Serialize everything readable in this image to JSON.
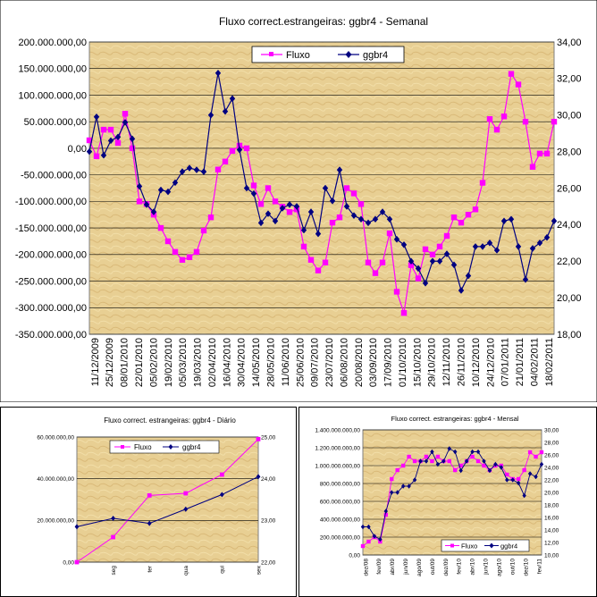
{
  "chart_data": [
    {
      "id": "weekly",
      "type": "line",
      "title": "Fluxo correct.estrangeiras: ggbr4 - Semanal",
      "yleft": {
        "min": -350000000,
        "max": 200000000,
        "step": 50000000,
        "ticks": [
          "200.000.000,00",
          "150.000.000,00",
          "100.000.000,00",
          "50.000.000,00",
          "0,00",
          "-50.000.000,00",
          "-100.000.000,00",
          "-150.000.000,00",
          "-200.000.000,00",
          "-250.000.000,00",
          "-300.000.000,00",
          "-350.000.000,00"
        ]
      },
      "yright": {
        "min": 18,
        "max": 34,
        "step": 2,
        "ticks": [
          "34,00",
          "32,00",
          "30,00",
          "28,00",
          "26,00",
          "24,00",
          "22,00",
          "20,00",
          "18,00"
        ]
      },
      "x_labels": [
        "11/12/2009",
        "25/12/2009",
        "08/01/2010",
        "22/01/2010",
        "05/02/2010",
        "19/02/2010",
        "05/03/2010",
        "19/03/2010",
        "02/04/2010",
        "16/04/2010",
        "30/04/2010",
        "14/05/2010",
        "28/05/2010",
        "11/06/2010",
        "25/06/2010",
        "09/07/2010",
        "23/07/2010",
        "06/08/2010",
        "20/08/2010",
        "03/09/2010",
        "17/09/2010",
        "01/10/2010",
        "15/10/2010",
        "29/10/2010",
        "12/11/2010",
        "26/11/2010",
        "10/12/2010",
        "24/12/2010",
        "07/01/2011",
        "21/01/2011",
        "04/02/2011",
        "18/02/2011"
      ],
      "legend": [
        "Fluxo",
        "ggbr4"
      ],
      "series": [
        {
          "name": "Fluxo",
          "axis": "left",
          "color": "#ff00ff",
          "marker": "square",
          "values": [
            15,
            -15,
            35,
            35,
            10,
            65,
            0,
            -100,
            -105,
            -125,
            -150,
            -175,
            -195,
            -210,
            -205,
            -195,
            -155,
            -130,
            -40,
            -25,
            -5,
            5,
            0,
            -70,
            -105,
            -75,
            -100,
            -110,
            -120,
            -115,
            -185,
            -210,
            -230,
            -215,
            -140,
            -130,
            -75,
            -85,
            -105,
            -215,
            -235,
            -215,
            -160,
            -270,
            -310,
            -220,
            -245,
            -190,
            -200,
            -185,
            -165,
            -130,
            -140,
            -125,
            -115,
            -65,
            55,
            35,
            60,
            140,
            120,
            50,
            -35,
            -10,
            -10,
            50
          ]
        },
        {
          "name": "ggbr4",
          "axis": "right",
          "color": "#000080",
          "marker": "diamond",
          "values": [
            28.0,
            29.9,
            27.8,
            28.6,
            28.8,
            29.6,
            28.7,
            26.1,
            25.1,
            24.7,
            25.9,
            25.8,
            26.3,
            26.9,
            27.1,
            27.0,
            26.9,
            30.0,
            32.3,
            30.2,
            30.9,
            28.1,
            26.0,
            25.7,
            24.1,
            24.6,
            24.2,
            24.9,
            25.1,
            25.0,
            23.7,
            24.7,
            23.5,
            26.0,
            25.3,
            27.0,
            25.0,
            24.5,
            24.3,
            24.1,
            24.3,
            24.7,
            24.3,
            23.2,
            22.9,
            22.0,
            21.6,
            20.8,
            22.0,
            22.0,
            22.4,
            21.8,
            20.4,
            21.2,
            22.8,
            22.8,
            23.0,
            22.6,
            24.2,
            24.3,
            22.8,
            21.0,
            22.7,
            23.0,
            23.3,
            24.2
          ]
        }
      ]
    },
    {
      "id": "daily",
      "type": "line",
      "title": "Fluxo correct. estrangeiras: ggbr4 - Diário",
      "yleft": {
        "min": 0,
        "max": 60000000,
        "step": 20000000,
        "ticks": [
          "60.000.000,00",
          "40.000.000,00",
          "20.000.000,00",
          "0,00"
        ]
      },
      "yright": {
        "min": 22,
        "max": 25,
        "step": 1,
        "ticks": [
          "25,00",
          "24,00",
          "23,00",
          "22,00"
        ]
      },
      "x_labels": [
        "",
        "seg",
        "ter",
        "qua",
        "qui",
        "sex"
      ],
      "legend": [
        "Fluxo",
        "ggbr4"
      ],
      "series": [
        {
          "name": "Fluxo",
          "axis": "left",
          "color": "#ff00ff",
          "marker": "square",
          "values": [
            0,
            12,
            32,
            33,
            42,
            59
          ]
        },
        {
          "name": "ggbr4",
          "axis": "right",
          "color": "#000080",
          "marker": "diamond",
          "values": [
            22.85,
            23.05,
            22.93,
            23.27,
            23.62,
            24.05
          ]
        }
      ]
    },
    {
      "id": "monthly",
      "type": "line",
      "title": "Fluxo correct. estrangeiras: ggbr4 - Mensal",
      "yleft": {
        "min": 0,
        "max": 1400000000,
        "step": 200000000,
        "ticks": [
          "1.400.000.000,00",
          "1.200.000.000,00",
          "1.000.000.000,00",
          "800.000.000,00",
          "600.000.000,00",
          "400.000.000,00",
          "200.000.000,00",
          "0,00"
        ]
      },
      "yright": {
        "min": 10,
        "max": 30,
        "step": 2,
        "ticks": [
          "30,00",
          "28,00",
          "26,00",
          "24,00",
          "22,00",
          "20,00",
          "18,00",
          "16,00",
          "14,00",
          "12,00",
          "10,00"
        ]
      },
      "x_labels": [
        "dez/08",
        "fev/09",
        "abr/09",
        "jun/09",
        "ago/09",
        "out/09",
        "dez/09",
        "fev/10",
        "abr/10",
        "jun/10",
        "ago/10",
        "out/10",
        "dez/10",
        "fev/11"
      ],
      "legend": [
        "Fluxo",
        "ggbr4"
      ],
      "series": [
        {
          "name": "Fluxo",
          "axis": "left",
          "color": "#ff00ff",
          "marker": "square",
          "values": [
            100,
            150,
            200,
            150,
            450,
            850,
            950,
            1000,
            1100,
            1050,
            1050,
            1100,
            1050,
            1100,
            1050,
            1050,
            950,
            1000,
            1050,
            1100,
            1050,
            1000,
            950,
            1000,
            1000,
            900,
            850,
            850,
            950,
            1150,
            1100,
            1150
          ]
        },
        {
          "name": "ggbr4",
          "axis": "right",
          "color": "#000080",
          "marker": "diamond",
          "values": [
            14.5,
            14.5,
            13.0,
            12.5,
            17.0,
            20.0,
            20.0,
            21.0,
            21.0,
            22.0,
            25.0,
            25.0,
            26.5,
            24.5,
            25.0,
            27.0,
            26.5,
            23.5,
            25.0,
            26.5,
            26.5,
            25.0,
            23.5,
            24.5,
            24.0,
            22.0,
            22.0,
            21.5,
            19.5,
            23.0,
            22.5,
            24.5
          ]
        }
      ]
    }
  ]
}
